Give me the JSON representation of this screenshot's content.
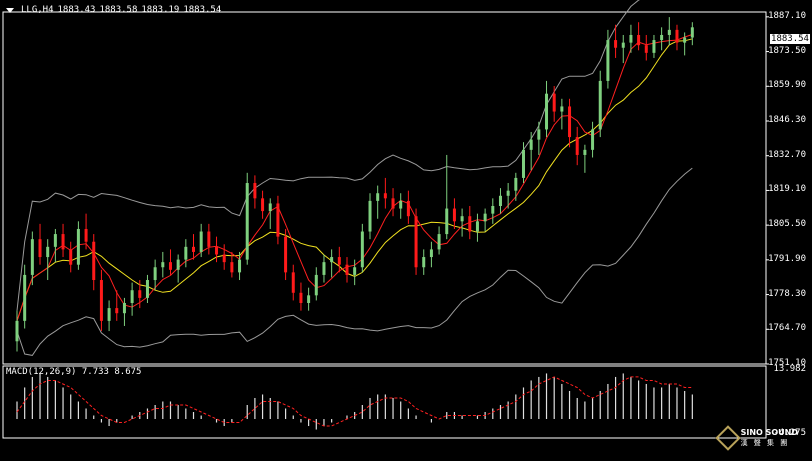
{
  "header": {
    "symbol": "LLG,H4",
    "open": "1883.43",
    "high": "1883.58",
    "low": "1883.19",
    "close": "1883.54"
  },
  "macd_header": "MACD(12,26,9) 7.733 8.675",
  "current_price": "1883.54",
  "price_axis_labels": [
    "1887.10",
    "1873.50",
    "1859.90",
    "1846.30",
    "1832.70",
    "1819.10",
    "1805.50",
    "1791.90",
    "1778.30",
    "1764.70",
    "1751.10"
  ],
  "macd_axis_labels": [
    "13.982",
    "-4.275"
  ],
  "logo": {
    "name": "SINO SOUND",
    "sub": "漢 聲 集 團"
  },
  "colors": {
    "background": "#000000",
    "bull_candle": "#7fd07f",
    "bear_candle": "#ff1a1a",
    "ma_fast": "#ff2020",
    "ma_slow": "#f0e020",
    "bollinger": "#9a9a9a",
    "macd_hist": "#e0e0e0",
    "macd_signal": "#ff2020"
  },
  "chart_data": {
    "type": "candlestick",
    "ylim": [
      1751.1,
      1889.0
    ],
    "candles": [
      [
        1760,
        1772,
        1756,
        1768
      ],
      [
        1768,
        1790,
        1765,
        1786
      ],
      [
        1786,
        1803,
        1782,
        1800
      ],
      [
        1800,
        1806,
        1790,
        1793
      ],
      [
        1793,
        1800,
        1784,
        1797
      ],
      [
        1797,
        1804,
        1791,
        1802
      ],
      [
        1802,
        1806,
        1793,
        1796
      ],
      [
        1796,
        1799,
        1787,
        1790
      ],
      [
        1790,
        1807,
        1788,
        1804
      ],
      [
        1804,
        1810,
        1796,
        1799
      ],
      [
        1799,
        1802,
        1780,
        1784
      ],
      [
        1784,
        1788,
        1764,
        1768
      ],
      [
        1768,
        1776,
        1764,
        1773
      ],
      [
        1773,
        1780,
        1768,
        1771
      ],
      [
        1771,
        1777,
        1766,
        1775
      ],
      [
        1775,
        1783,
        1770,
        1780
      ],
      [
        1780,
        1784,
        1773,
        1777
      ],
      [
        1777,
        1786,
        1775,
        1784
      ],
      [
        1784,
        1792,
        1780,
        1789
      ],
      [
        1789,
        1795,
        1785,
        1791
      ],
      [
        1791,
        1796,
        1786,
        1788
      ],
      [
        1788,
        1794,
        1783,
        1792
      ],
      [
        1792,
        1800,
        1789,
        1797
      ],
      [
        1797,
        1802,
        1792,
        1795
      ],
      [
        1795,
        1806,
        1793,
        1803
      ],
      [
        1803,
        1806,
        1794,
        1797
      ],
      [
        1797,
        1801,
        1791,
        1794
      ],
      [
        1794,
        1798,
        1788,
        1791
      ],
      [
        1791,
        1795,
        1785,
        1787
      ],
      [
        1787,
        1795,
        1784,
        1792
      ],
      [
        1792,
        1826,
        1790,
        1822
      ],
      [
        1822,
        1825,
        1812,
        1816
      ],
      [
        1816,
        1819,
        1808,
        1811
      ],
      [
        1811,
        1816,
        1804,
        1814
      ],
      [
        1814,
        1817,
        1798,
        1801
      ],
      [
        1801,
        1804,
        1784,
        1787
      ],
      [
        1787,
        1790,
        1776,
        1779
      ],
      [
        1779,
        1783,
        1772,
        1775
      ],
      [
        1775,
        1781,
        1772,
        1778
      ],
      [
        1778,
        1789,
        1776,
        1786
      ],
      [
        1786,
        1794,
        1783,
        1791
      ],
      [
        1791,
        1796,
        1785,
        1793
      ],
      [
        1793,
        1797,
        1787,
        1790
      ],
      [
        1790,
        1793,
        1783,
        1786
      ],
      [
        1786,
        1792,
        1782,
        1789
      ],
      [
        1789,
        1806,
        1787,
        1803
      ],
      [
        1803,
        1818,
        1800,
        1815
      ],
      [
        1815,
        1821,
        1808,
        1818
      ],
      [
        1818,
        1824,
        1812,
        1816
      ],
      [
        1816,
        1820,
        1809,
        1812
      ],
      [
        1812,
        1818,
        1808,
        1815
      ],
      [
        1815,
        1819,
        1806,
        1809
      ],
      [
        1809,
        1812,
        1786,
        1789
      ],
      [
        1789,
        1796,
        1786,
        1793
      ],
      [
        1793,
        1799,
        1789,
        1796
      ],
      [
        1796,
        1805,
        1794,
        1802
      ],
      [
        1802,
        1833,
        1800,
        1812
      ],
      [
        1812,
        1816,
        1804,
        1807
      ],
      [
        1807,
        1812,
        1801,
        1809
      ],
      [
        1809,
        1813,
        1800,
        1803
      ],
      [
        1803,
        1810,
        1799,
        1807
      ],
      [
        1807,
        1812,
        1803,
        1810
      ],
      [
        1810,
        1816,
        1806,
        1813
      ],
      [
        1813,
        1820,
        1810,
        1817
      ],
      [
        1817,
        1822,
        1812,
        1819
      ],
      [
        1819,
        1826,
        1815,
        1824
      ],
      [
        1824,
        1838,
        1822,
        1835
      ],
      [
        1835,
        1842,
        1827,
        1839
      ],
      [
        1839,
        1846,
        1833,
        1843
      ],
      [
        1843,
        1862,
        1840,
        1857
      ],
      [
        1857,
        1860,
        1846,
        1850
      ],
      [
        1850,
        1855,
        1843,
        1852
      ],
      [
        1852,
        1855,
        1836,
        1840
      ],
      [
        1840,
        1844,
        1829,
        1833
      ],
      [
        1833,
        1837,
        1826,
        1835
      ],
      [
        1835,
        1846,
        1832,
        1843
      ],
      [
        1843,
        1866,
        1840,
        1862
      ],
      [
        1862,
        1882,
        1859,
        1878
      ],
      [
        1878,
        1884,
        1871,
        1875
      ],
      [
        1875,
        1880,
        1869,
        1877
      ],
      [
        1877,
        1884,
        1873,
        1880
      ],
      [
        1880,
        1885,
        1874,
        1876
      ],
      [
        1876,
        1880,
        1870,
        1873
      ],
      [
        1873,
        1880,
        1871,
        1878
      ],
      [
        1878,
        1883,
        1874,
        1880
      ],
      [
        1880,
        1887,
        1876,
        1882
      ],
      [
        1882,
        1884,
        1874,
        1877
      ],
      [
        1877,
        1881,
        1872,
        1879
      ],
      [
        1879,
        1885,
        1876,
        1883
      ]
    ],
    "macd_range": [
      -4.275,
      13.982
    ],
    "macd_hist": [
      5,
      9,
      12,
      13,
      12,
      11,
      9,
      7,
      5,
      3,
      1,
      -1,
      -2,
      -1,
      0,
      1,
      2,
      3,
      4,
      5,
      5,
      4,
      3,
      2,
      1,
      0,
      -1,
      -2,
      -1,
      0,
      4,
      6,
      7,
      6,
      5,
      3,
      1,
      -1,
      -2,
      -3,
      -2,
      -1,
      0,
      1,
      2,
      4,
      6,
      7,
      7,
      6,
      5,
      3,
      1,
      0,
      -1,
      0,
      2,
      2,
      1,
      0,
      1,
      2,
      3,
      4,
      5,
      7,
      9,
      11,
      12,
      13,
      12,
      10,
      8,
      6,
      5,
      6,
      8,
      10,
      12,
      13,
      12,
      11,
      10,
      9,
      9,
      10,
      9,
      8,
      7
    ],
    "macd_signal": [
      2,
      5,
      8,
      10,
      11,
      11,
      10,
      9,
      7,
      5,
      3,
      1,
      0,
      -1,
      -1,
      0,
      1,
      2,
      3,
      3,
      4,
      4,
      4,
      3,
      2,
      1,
      0,
      -1,
      -1,
      -1,
      1,
      3,
      5,
      5,
      5,
      4,
      3,
      1,
      0,
      -1,
      -2,
      -2,
      -1,
      0,
      1,
      2,
      4,
      5,
      6,
      6,
      6,
      5,
      3,
      2,
      1,
      0,
      1,
      1,
      1,
      1,
      1,
      1,
      2,
      3,
      4,
      5,
      7,
      8,
      10,
      11,
      12,
      11,
      10,
      9,
      7,
      6,
      7,
      8,
      9,
      11,
      12,
      12,
      11,
      11,
      10,
      10,
      10,
      9,
      9
    ]
  }
}
